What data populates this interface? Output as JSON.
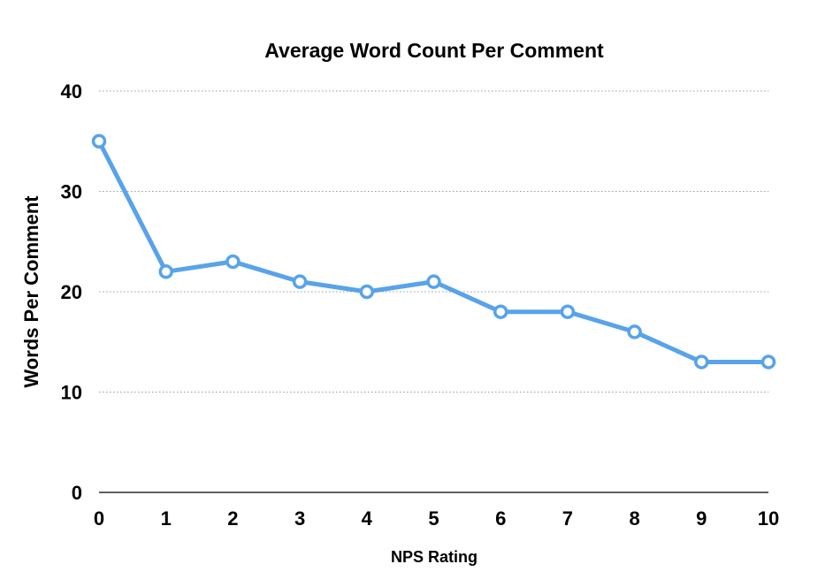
{
  "chart_data": {
    "type": "line",
    "title": "Average Word Count Per Comment",
    "xlabel": "NPS Rating",
    "ylabel": "Words Per Comment",
    "x": [
      0,
      1,
      2,
      3,
      4,
      5,
      6,
      7,
      8,
      9,
      10
    ],
    "x_tick_labels": [
      "0",
      "1",
      "2",
      "3",
      "4",
      "5",
      "6",
      "7",
      "8",
      "9",
      "10"
    ],
    "series": [
      {
        "values": [
          35,
          22,
          23,
          21,
          20,
          21,
          18,
          18,
          16,
          13,
          13
        ],
        "color": "#58A3EA",
        "marker": "hollow-circle"
      }
    ],
    "y_ticks": [
      0,
      10,
      20,
      30,
      40
    ],
    "y_tick_labels": [
      "0",
      "10",
      "20",
      "30",
      "40"
    ],
    "xlim": [
      0,
      10
    ],
    "ylim": [
      0,
      40
    ],
    "grid": "horizontal-dotted",
    "legend": "none",
    "colors": {
      "line": "#58A3EA",
      "marker_fill": "#ffffff",
      "grid": "#9a9a9a",
      "text": "#000000"
    }
  }
}
